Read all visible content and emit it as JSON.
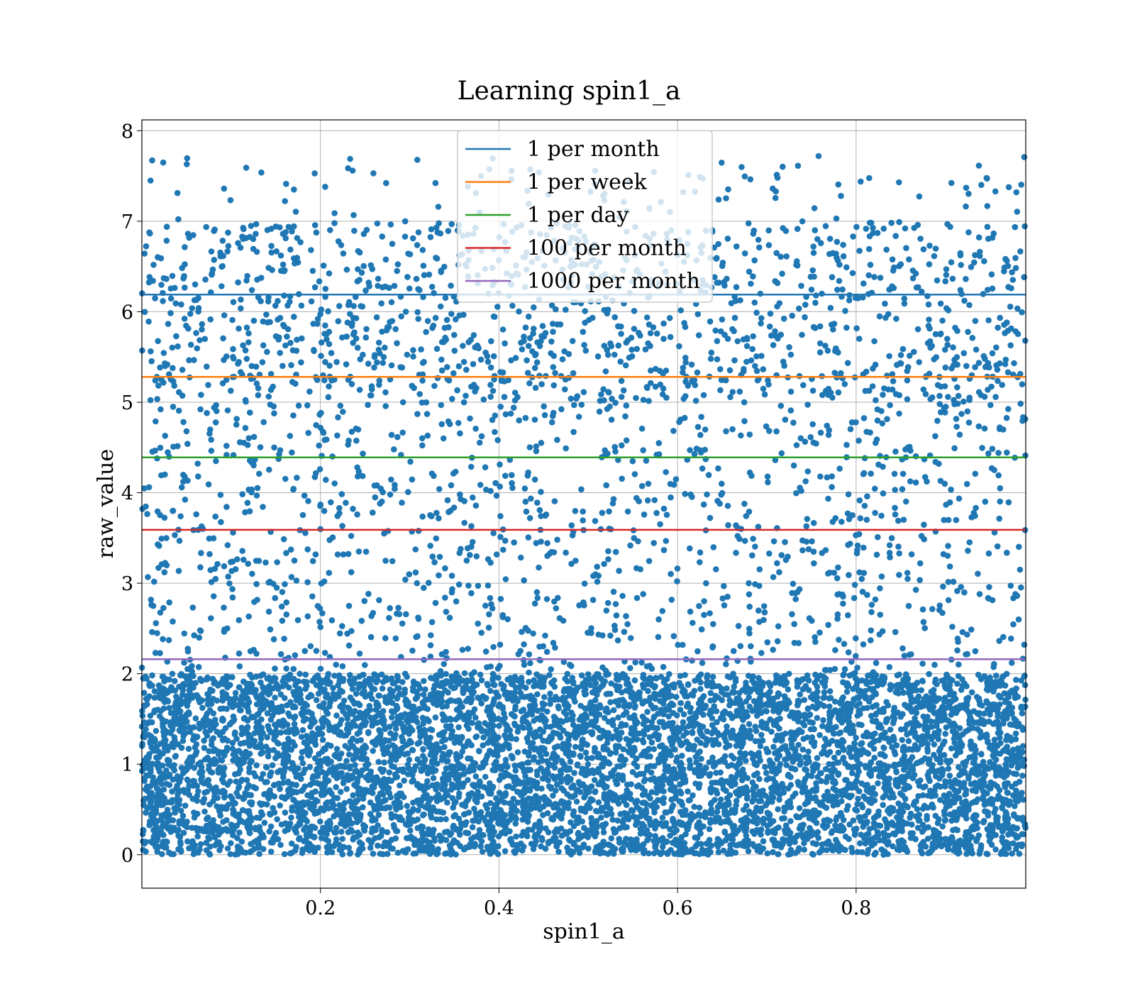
{
  "chart_data": {
    "type": "scatter",
    "title": "Learning spin1_a",
    "xlabel": "spin1_a",
    "ylabel": "raw_value",
    "xlim": [
      0.0,
      0.99
    ],
    "ylim": [
      -0.37,
      8.12
    ],
    "x_ticks": [
      {
        "value": 0.2,
        "label": "0.2"
      },
      {
        "value": 0.4,
        "label": "0.4"
      },
      {
        "value": 0.6,
        "label": "0.6"
      },
      {
        "value": 0.8,
        "label": "0.8"
      }
    ],
    "y_ticks": [
      {
        "value": 0,
        "label": "0"
      },
      {
        "value": 1,
        "label": "1"
      },
      {
        "value": 2,
        "label": "2"
      },
      {
        "value": 3,
        "label": "3"
      },
      {
        "value": 4,
        "label": "4"
      },
      {
        "value": 5,
        "label": "5"
      },
      {
        "value": 6,
        "label": "6"
      },
      {
        "value": 7,
        "label": "7"
      },
      {
        "value": 8,
        "label": "8"
      }
    ],
    "grid": true,
    "legend_position": "top-center",
    "scatter": {
      "color": "#1f77b4",
      "approx_points": 24000,
      "x_range": [
        0.0,
        0.99
      ],
      "y_range": [
        0.0,
        7.72
      ],
      "density_bands": [
        {
          "y_from": 0.0,
          "y_to": 2.0,
          "share": 0.72
        },
        {
          "y_from": 2.0,
          "y_to": 5.0,
          "share": 0.13
        },
        {
          "y_from": 5.0,
          "y_to": 7.0,
          "share": 0.14
        },
        {
          "y_from": 7.0,
          "y_to": 7.72,
          "share": 0.01
        }
      ],
      "samples": [
        {
          "x": 0.758,
          "y": 7.72
        },
        {
          "x": 0.712,
          "y": 7.48
        },
        {
          "x": 0.848,
          "y": 7.43
        },
        {
          "x": 0.956,
          "y": 7.33
        },
        {
          "x": 0.092,
          "y": 7.36
        },
        {
          "x": 0.332,
          "y": 7.16
        },
        {
          "x": 0.646,
          "y": 7.24
        },
        {
          "x": 0.783,
          "y": 7.28
        }
      ]
    },
    "series": [
      {
        "name": "1 per month",
        "y": 6.19,
        "color": "#1f77b4"
      },
      {
        "name": "1 per week",
        "y": 5.28,
        "color": "#ff7f0e"
      },
      {
        "name": "1 per day",
        "y": 4.39,
        "color": "#2ca02c"
      },
      {
        "name": "100 per month",
        "y": 3.59,
        "color": "#d62728"
      },
      {
        "name": "1000 per month",
        "y": 2.16,
        "color": "#9467bd"
      }
    ]
  }
}
